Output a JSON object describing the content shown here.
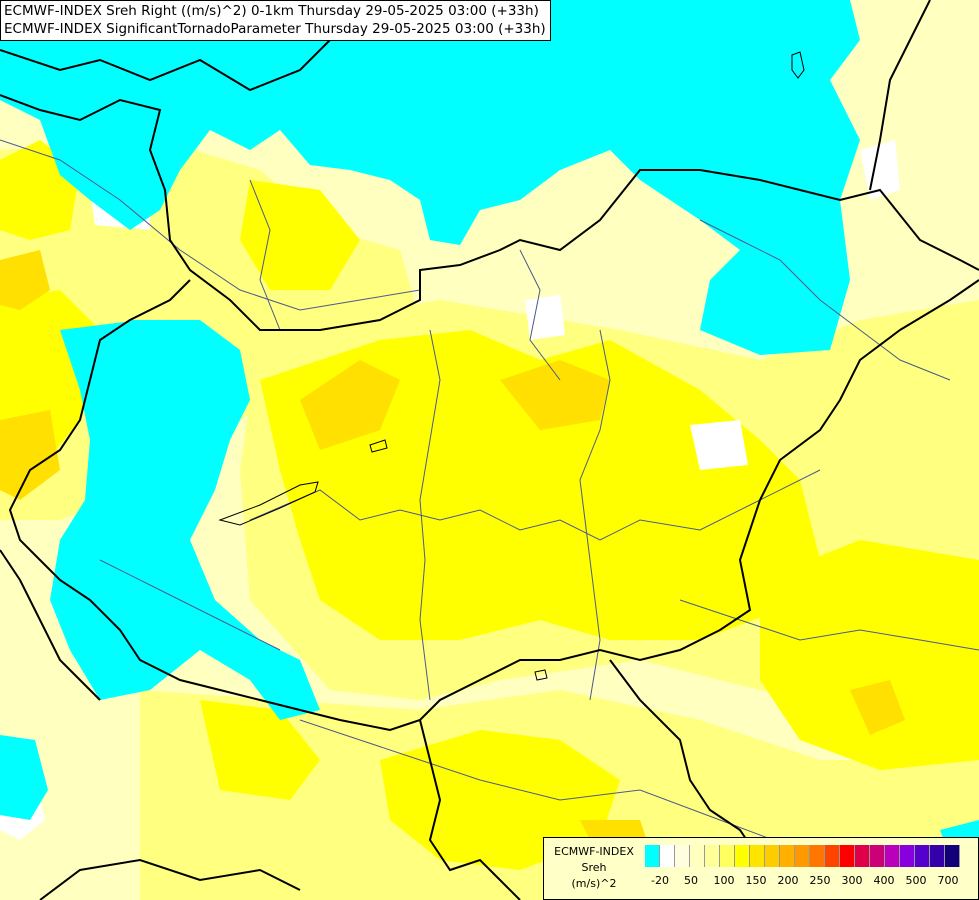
{
  "header": {
    "line1": "ECMWF-INDEX Sreh Right ((m/s)^2) 0-1km Thursday 29-05-2025 03:00 (+33h)",
    "line2": "ECMWF-INDEX SignificantTornadoParameter Thursday 29-05-2025 03:00 (+33h)"
  },
  "legend": {
    "line1": "ECMWF-INDEX",
    "line2": "Sreh",
    "line3": "(m/s)^2",
    "colors": [
      "#00ffff",
      "#ffffff",
      "#ffffe0",
      "#ffffc0",
      "#ffff99",
      "#ffff60",
      "#ffff00",
      "#ffe400",
      "#ffcc00",
      "#ffb000",
      "#ff9900",
      "#ff7700",
      "#ff4400",
      "#ff0000",
      "#e0004a",
      "#cc0077",
      "#bb00bb",
      "#8800dd",
      "#5500cc",
      "#3300aa",
      "#110077"
    ],
    "ticks": [
      "-20",
      "50",
      "100",
      "150",
      "200",
      "250",
      "300",
      "400",
      "500",
      "700"
    ]
  },
  "colors": {
    "cyan": "#00ffff",
    "pale_yellow": "#ffffc0",
    "light_yellow": "#ffff80",
    "yellow": "#ffff00",
    "dark_yellow": "#ffe000",
    "orange_yellow": "#ffc800",
    "border": "#000000",
    "river": "#4a5a8a"
  }
}
